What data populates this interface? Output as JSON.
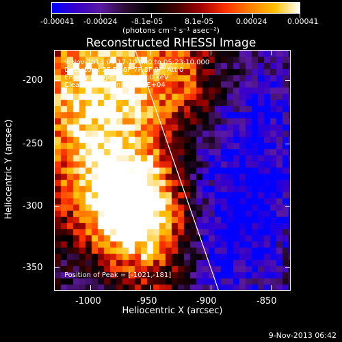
{
  "colorbar": {
    "tick_labels": [
      "-0.00041",
      "-0.00024",
      "-8.1e-05",
      "8.1e-05",
      "0.00024",
      "0.00041"
    ],
    "units_label": "(photons cm⁻² s⁻¹ asec⁻²)"
  },
  "title": "Reconstructed RHESSI Image",
  "info": {
    "time_range": "9-Nov-2013 05:17:10.000 to 05:23:10.000",
    "detectors": "Detectors: 3F 5F 6F 7F 8F 9F, Att 0",
    "energy_range": "Energy Range: 12.0 - 25.0 keV",
    "clean": "Clean     Total counts: 1.85E+04"
  },
  "peak_label": "Position of Peak = [-1021,-181]",
  "xaxis": {
    "label": "Heliocentric X (arcsec)",
    "tick_labels": [
      "-1000",
      "-950",
      "-900",
      "-850"
    ]
  },
  "yaxis": {
    "label": "Heliocentric Y (arcsec)",
    "tick_labels": [
      "-200",
      "-250",
      "-300",
      "-350"
    ]
  },
  "timestamp": "9-Nov-2013 06:42",
  "colors": {
    "colormap": [
      "#0000ff",
      "#3a00c8",
      "#5a1aa0",
      "#2a0a30",
      "#000000",
      "#400000",
      "#a00000",
      "#ff3000",
      "#ff8000",
      "#ffc000",
      "#ffffff"
    ],
    "limb_line": "#ffffff"
  }
}
